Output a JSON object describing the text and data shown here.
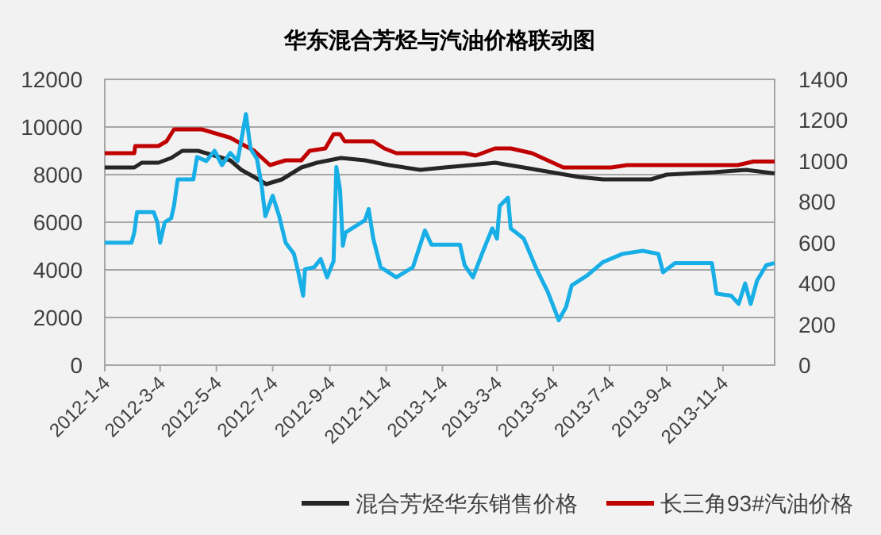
{
  "chart_data": {
    "type": "line",
    "title": "华东混合芳烃与汽油价格联动图",
    "xlim": [
      "2012-01-04",
      "2013-12-30"
    ],
    "xticks": [
      {
        "value": "2012-01-04",
        "label": "2012-1-4"
      },
      {
        "value": "2012-03-04",
        "label": "2012-3-4"
      },
      {
        "value": "2012-05-04",
        "label": "2012-5-4"
      },
      {
        "value": "2012-07-04",
        "label": "2012-7-4"
      },
      {
        "value": "2012-09-04",
        "label": "2012-9-4"
      },
      {
        "value": "2012-11-04",
        "label": "2012-11-4"
      },
      {
        "value": "2013-01-04",
        "label": "2013-1-4"
      },
      {
        "value": "2013-03-04",
        "label": "2013-3-4"
      },
      {
        "value": "2013-05-04",
        "label": "2013-5-4"
      },
      {
        "value": "2013-07-04",
        "label": "2013-7-4"
      },
      {
        "value": "2013-09-04",
        "label": "2013-9-4"
      },
      {
        "value": "2013-11-04",
        "label": "2013-11-4"
      }
    ],
    "ylim": [
      0,
      12000
    ],
    "yticks": [
      0,
      2000,
      4000,
      6000,
      8000,
      10000,
      12000
    ],
    "y2lim": [
      0,
      1400
    ],
    "y2ticks": [
      0,
      200,
      400,
      600,
      800,
      1000,
      1200,
      1400
    ],
    "grid": "y",
    "legend": "bottom",
    "marker": "none",
    "line_style": "solid",
    "series": [
      {
        "name": "混合芳烃华东销售价格",
        "color": "#262626",
        "x": [
          "2012-01-04",
          "2012-02-05",
          "2012-02-13",
          "2012-03-02",
          "2012-03-16",
          "2012-03-28",
          "2012-04-14",
          "2012-05-02",
          "2012-05-19",
          "2012-05-31",
          "2012-06-14",
          "2012-06-27",
          "2012-07-14",
          "2012-08-04",
          "2012-08-21",
          "2012-09-16",
          "2012-10-12",
          "2012-11-07",
          "2012-12-11",
          "2013-01-06",
          "2013-02-18",
          "2013-03-02",
          "2013-04-02",
          "2013-06-01",
          "2013-06-27",
          "2013-08-18",
          "2013-09-04",
          "2013-10-25",
          "2013-11-29",
          "2013-12-30"
        ],
        "values": [
          8300,
          8300,
          8500,
          8500,
          8700,
          9000,
          9000,
          8800,
          8600,
          8200,
          7900,
          7600,
          7800,
          8300,
          8500,
          8700,
          8600,
          8400,
          8200,
          8300,
          8450,
          8500,
          8300,
          7900,
          7800,
          7800,
          8000,
          8100,
          8200,
          8050
        ]
      },
      {
        "name": "长三角93#汽油价格",
        "color": "#c00000",
        "x": [
          "2012-01-04",
          "2012-02-05",
          "2012-02-06",
          "2012-03-02",
          "2012-03-11",
          "2012-03-19",
          "2012-04-18",
          "2012-05-19",
          "2012-06-14",
          "2012-07-01",
          "2012-07-18",
          "2012-08-04",
          "2012-08-13",
          "2012-08-30",
          "2012-09-08",
          "2012-09-15",
          "2012-09-20",
          "2012-10-21",
          "2012-11-02",
          "2012-11-15",
          "2013-01-28",
          "2013-02-09",
          "2013-03-02",
          "2013-03-19",
          "2013-04-11",
          "2013-05-15",
          "2013-07-06",
          "2013-07-23",
          "2013-11-20",
          "2013-12-07",
          "2013-12-30"
        ],
        "values": [
          8900,
          8900,
          9200,
          9200,
          9400,
          9900,
          9900,
          9550,
          9000,
          8400,
          8600,
          8600,
          9000,
          9100,
          9700,
          9700,
          9400,
          9400,
          9100,
          8900,
          8900,
          8800,
          9100,
          9100,
          8900,
          8300,
          8300,
          8400,
          8400,
          8550,
          8550
        ]
      },
      {
        "color": "#18aee6",
        "axis": "y2",
        "x": [
          "2012-01-04",
          "2012-02-02",
          "2012-02-05",
          "2012-02-08",
          "2012-02-26",
          "2012-03-01",
          "2012-03-04",
          "2012-03-09",
          "2012-03-16",
          "2012-03-19",
          "2012-03-23",
          "2012-04-09",
          "2012-04-13",
          "2012-04-23",
          "2012-05-02",
          "2012-05-10",
          "2012-05-19",
          "2012-05-27",
          "2012-06-05",
          "2012-06-10",
          "2012-06-17",
          "2012-06-22",
          "2012-06-26",
          "2012-07-04",
          "2012-07-11",
          "2012-07-18",
          "2012-07-27",
          "2012-08-01",
          "2012-08-06",
          "2012-08-08",
          "2012-08-18",
          "2012-08-25",
          "2012-09-01",
          "2012-09-08",
          "2012-09-11",
          "2012-09-15",
          "2012-09-18",
          "2012-09-21",
          "2012-10-12",
          "2012-10-16",
          "2012-10-21",
          "2012-10-29",
          "2012-11-15",
          "2012-12-03",
          "2012-12-16",
          "2012-12-23",
          "2013-01-23",
          "2013-01-28",
          "2013-02-06",
          "2013-02-18",
          "2013-02-27",
          "2013-03-04",
          "2013-03-07",
          "2013-03-16",
          "2013-03-19",
          "2013-04-02",
          "2013-04-16",
          "2013-04-28",
          "2013-05-10",
          "2013-05-18",
          "2013-05-24",
          "2013-06-10",
          "2013-06-27",
          "2013-07-18",
          "2013-08-09",
          "2013-08-26",
          "2013-08-31",
          "2013-09-13",
          "2013-10-23",
          "2013-10-28",
          "2013-11-13",
          "2013-11-21",
          "2013-11-28",
          "2013-12-04",
          "2013-12-11",
          "2013-12-21",
          "2013-12-30"
        ],
        "values": [
          600,
          600,
          650,
          750,
          750,
          700,
          600,
          700,
          720,
          780,
          910,
          910,
          1020,
          1000,
          1050,
          980,
          1040,
          1000,
          1230,
          1060,
          1010,
          880,
          730,
          830,
          730,
          600,
          545,
          450,
          340,
          470,
          480,
          520,
          430,
          510,
          970,
          860,
          585,
          650,
          710,
          765,
          620,
          480,
          430,
          480,
          660,
          590,
          590,
          490,
          430,
          570,
          670,
          620,
          780,
          820,
          670,
          620,
          470,
          360,
          220,
          285,
          390,
          440,
          505,
          545,
          560,
          545,
          455,
          500,
          500,
          350,
          340,
          300,
          400,
          300,
          415,
          490,
          500
        ]
      }
    ]
  }
}
